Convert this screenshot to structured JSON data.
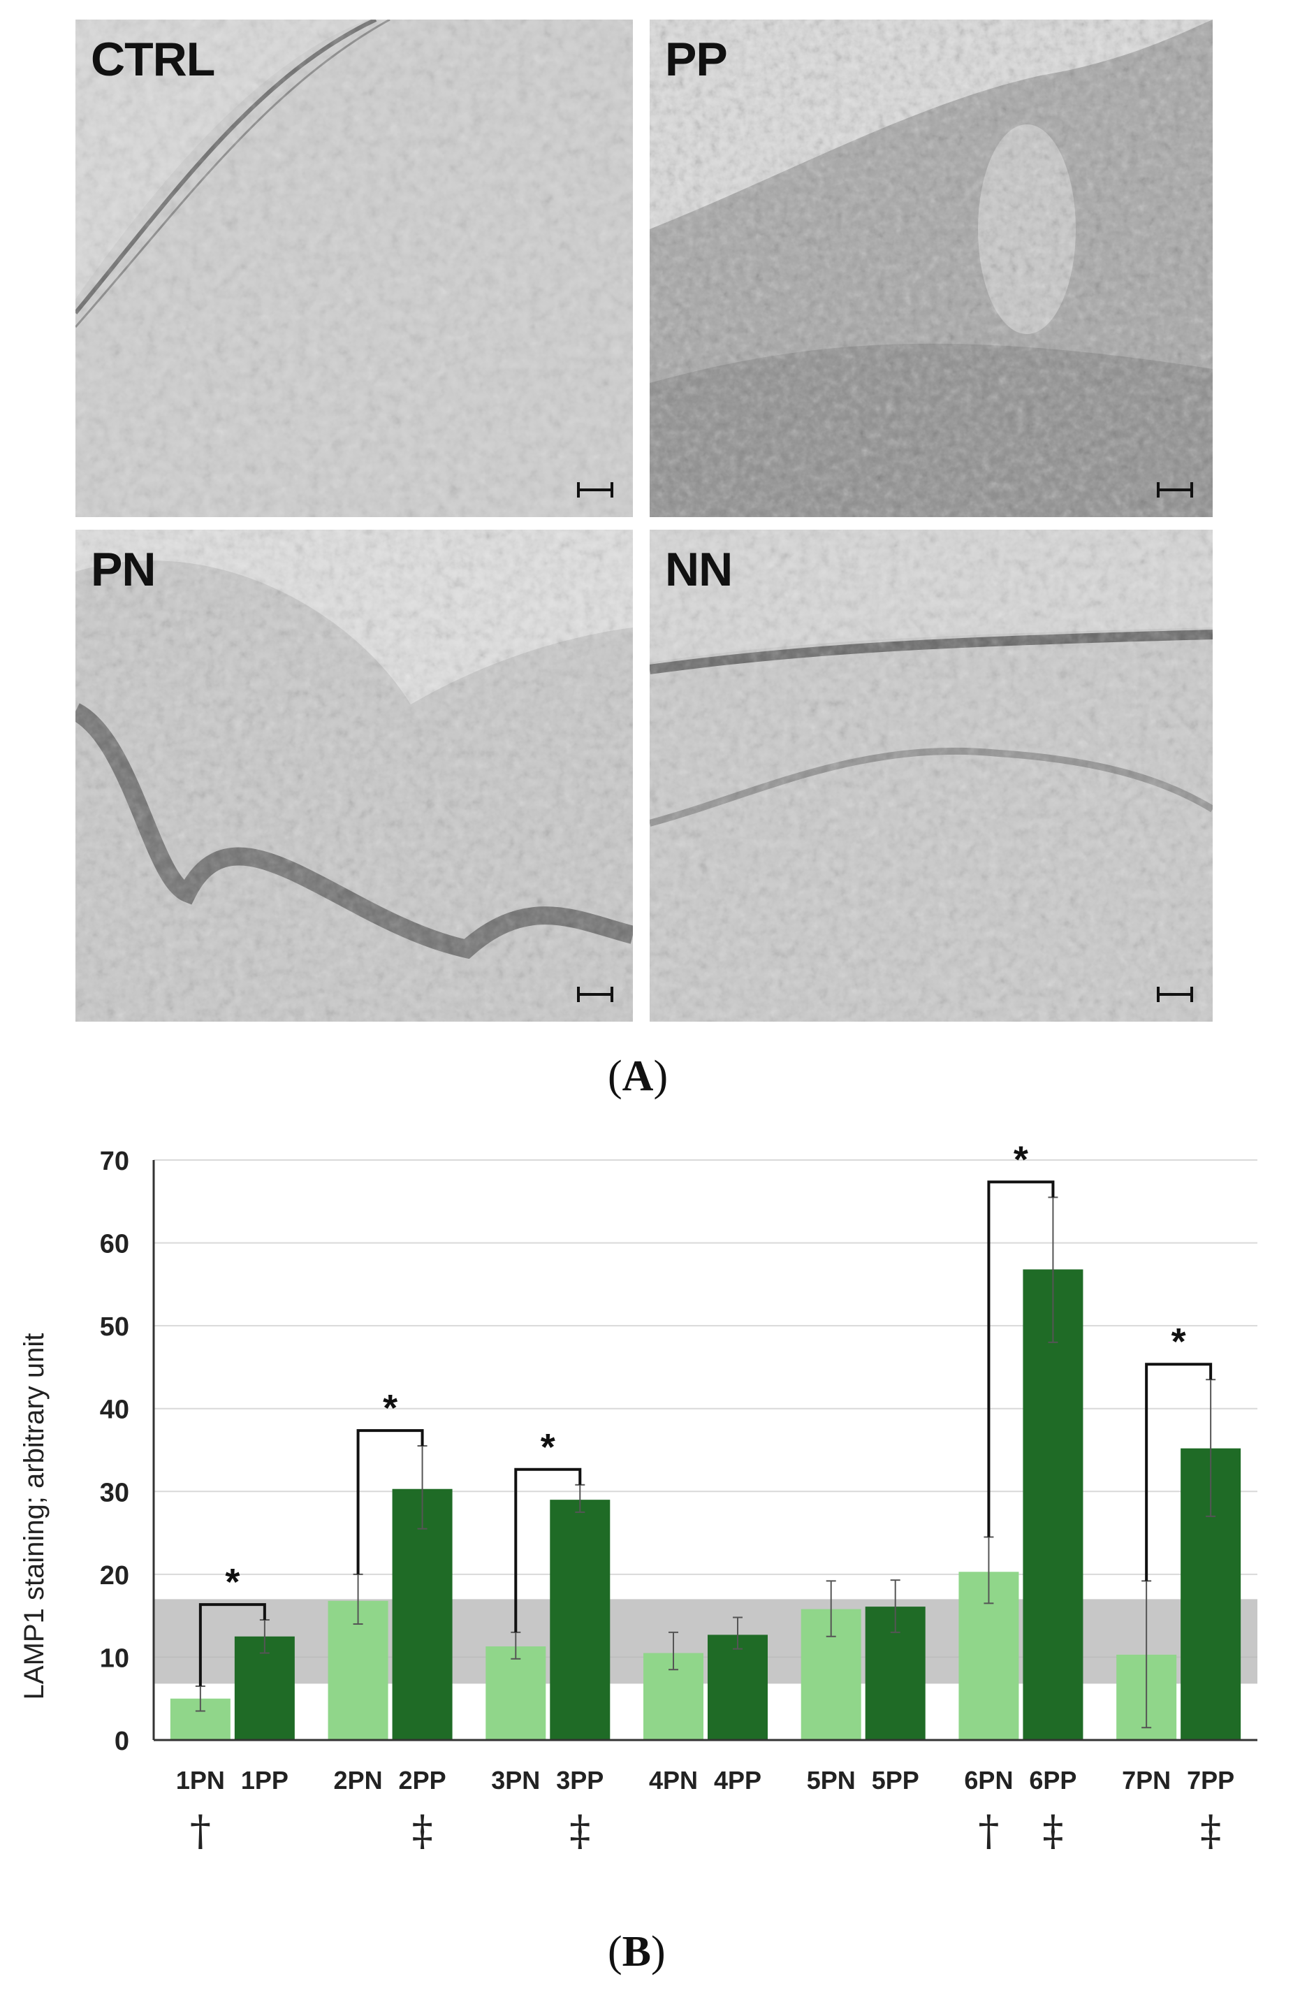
{
  "panels": [
    {
      "id": "ctrl",
      "label": "CTRL"
    },
    {
      "id": "pp",
      "label": "PP"
    },
    {
      "id": "pn",
      "label": "PN"
    },
    {
      "id": "nn",
      "label": "NN"
    }
  ],
  "captions": {
    "a": "A",
    "b": "B"
  },
  "colors": {
    "light_bar": "#90d68a",
    "dark_bar": "#1f6b26",
    "band": "#b4b4b4"
  },
  "chart_data": {
    "type": "bar",
    "ylabel": "LAMP1 staining; arbitrary unit",
    "ylim": [
      0,
      70
    ],
    "yticks": [
      0,
      10,
      20,
      30,
      40,
      50,
      60,
      70
    ],
    "grid": true,
    "control_band": [
      6.8,
      17
    ],
    "groups": [
      {
        "pn_label": "1PN",
        "pp_label": "1PP",
        "pn": 5,
        "pp": 12.5,
        "pn_err": [
          3.5,
          6.5
        ],
        "pp_err": [
          10.5,
          14.5
        ],
        "star": true,
        "pn_mark": "†",
        "pp_mark": ""
      },
      {
        "pn_label": "2PN",
        "pp_label": "2PP",
        "pn": 16.8,
        "pp": 30.3,
        "pn_err": [
          14,
          20
        ],
        "pp_err": [
          25.5,
          35.5
        ],
        "star": true,
        "pn_mark": "",
        "pp_mark": "‡"
      },
      {
        "pn_label": "3PN",
        "pp_label": "3PP",
        "pn": 11.3,
        "pp": 29,
        "pn_err": [
          9.8,
          13
        ],
        "pp_err": [
          27.5,
          30.8
        ],
        "star": true,
        "pn_mark": "",
        "pp_mark": "‡"
      },
      {
        "pn_label": "4PN",
        "pp_label": "4PP",
        "pn": 10.5,
        "pp": 12.7,
        "pn_err": [
          8.5,
          13
        ],
        "pp_err": [
          11,
          14.8
        ],
        "star": false,
        "pn_mark": "",
        "pp_mark": ""
      },
      {
        "pn_label": "5PN",
        "pp_label": "5PP",
        "pn": 15.8,
        "pp": 16.1,
        "pn_err": [
          12.5,
          19.2
        ],
        "pp_err": [
          13,
          19.3
        ],
        "star": false,
        "pn_mark": "",
        "pp_mark": ""
      },
      {
        "pn_label": "6PN",
        "pp_label": "6PP",
        "pn": 20.3,
        "pp": 56.8,
        "pn_err": [
          16.5,
          24.5
        ],
        "pp_err": [
          48,
          65.5
        ],
        "star": true,
        "pn_mark": "†",
        "pp_mark": "‡"
      },
      {
        "pn_label": "7PN",
        "pp_label": "7PP",
        "pn": 10.3,
        "pp": 35.2,
        "pn_err": [
          1.5,
          19.2
        ],
        "pp_err": [
          27,
          43.5
        ],
        "star": true,
        "pn_mark": "",
        "pp_mark": "‡"
      }
    ],
    "star_symbol": "*"
  }
}
